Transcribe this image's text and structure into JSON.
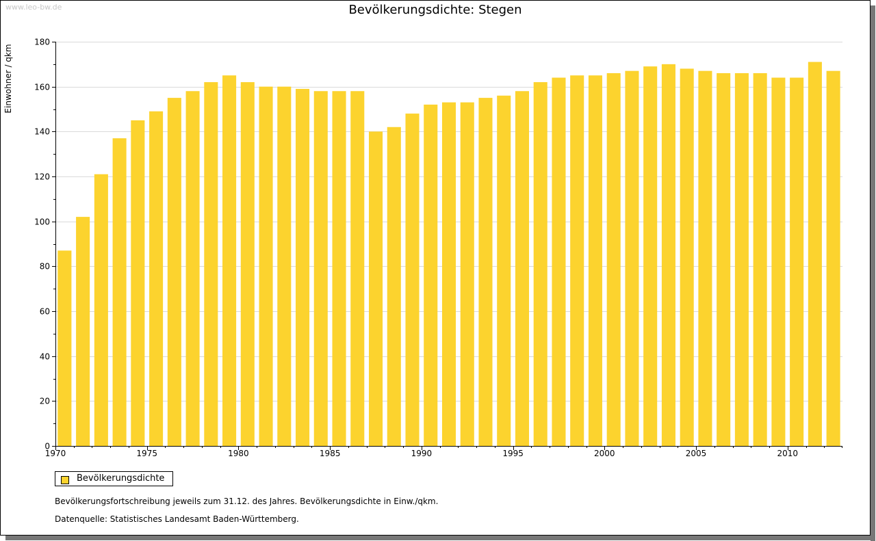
{
  "watermark": "www.leo-bw.de",
  "legend": {
    "label": "Bevölkerungsdichte",
    "color": "#fcd32e"
  },
  "notes": {
    "line1": "Bevölkerungsfortschreibung jeweils zum 31.12. des Jahres. Bevölkerungsdichte in Einw./qkm.",
    "line2": "Datenquelle: Statistisches Landesamt Baden-Württemberg."
  },
  "chart_data": {
    "type": "bar",
    "title": "Bevölkerungsdichte: Stegen",
    "xlabel": "",
    "ylabel": "Einwohner / qkm",
    "ylim": [
      0,
      180
    ],
    "yticks": [
      0,
      20,
      40,
      60,
      80,
      100,
      120,
      140,
      160,
      180
    ],
    "xtick_labels": [
      "1970",
      "1975",
      "1980",
      "1985",
      "1990",
      "1995",
      "2000",
      "2005",
      "2010"
    ],
    "grid": true,
    "bar_color": "#fcd32e",
    "categories": [
      1970,
      1971,
      1972,
      1973,
      1974,
      1975,
      1976,
      1977,
      1978,
      1979,
      1980,
      1981,
      1982,
      1983,
      1984,
      1985,
      1986,
      1987,
      1988,
      1989,
      1990,
      1991,
      1992,
      1993,
      1994,
      1995,
      1996,
      1997,
      1998,
      1999,
      2000,
      2001,
      2002,
      2003,
      2004,
      2005,
      2006,
      2007,
      2008,
      2009,
      2010,
      2011,
      2012
    ],
    "series": [
      {
        "name": "Bevölkerungsdichte",
        "values": [
          87,
          102,
          121,
          137,
          145,
          149,
          155,
          158,
          162,
          165,
          162,
          160,
          160,
          159,
          158,
          158,
          158,
          140,
          142,
          148,
          152,
          153,
          153,
          155,
          156,
          158,
          162,
          164,
          165,
          165,
          166,
          167,
          169,
          170,
          168,
          167,
          166,
          166,
          166,
          164,
          164,
          171,
          167
        ]
      }
    ]
  }
}
